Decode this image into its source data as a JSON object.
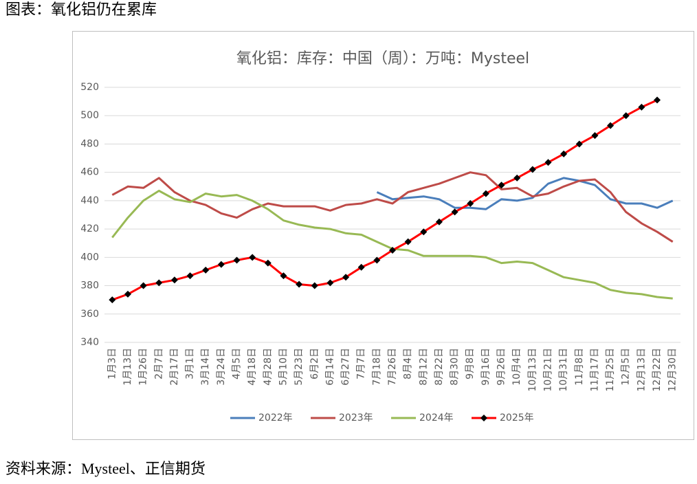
{
  "header": {
    "title": "图表：氧化铝仍在累库"
  },
  "chart_data": {
    "type": "line",
    "title": "氧化铝：库存：中国（周）：万吨：Mysteel",
    "categories": [
      "1月3日",
      "1月13日",
      "1月26日",
      "2月7日",
      "2月17日",
      "3月1日",
      "3月14日",
      "3月24日",
      "4月5日",
      "4月18日",
      "4月28日",
      "5月10日",
      "5月23日",
      "6月2日",
      "6月14日",
      "6月27日",
      "7月7日",
      "7月18日",
      "7月26日",
      "8月4日",
      "8月12日",
      "8月22日",
      "8月30日",
      "9月8日",
      "9月16日",
      "9月26日",
      "10月4日",
      "10月13日",
      "10月21日",
      "10月31日",
      "11月8日",
      "11月17日",
      "11月25日",
      "12月5日",
      "12月13日",
      "12月22日",
      "12月30日"
    ],
    "series": [
      {
        "name": "2022年",
        "color": "#4a7ebb",
        "values": [
          null,
          null,
          null,
          null,
          null,
          null,
          null,
          null,
          null,
          null,
          null,
          null,
          null,
          null,
          null,
          null,
          null,
          446,
          441,
          442,
          443,
          441,
          435,
          435,
          434,
          441,
          440,
          442,
          452,
          456,
          454,
          451,
          441,
          438,
          438,
          435,
          440
        ]
      },
      {
        "name": "2023年",
        "color": "#be4b48",
        "values": [
          444,
          450,
          449,
          456,
          446,
          440,
          437,
          431,
          428,
          434,
          438,
          436,
          436,
          436,
          433,
          437,
          438,
          441,
          438,
          446,
          449,
          452,
          456,
          460,
          458,
          448,
          449,
          443,
          445,
          450,
          454,
          455,
          446,
          432,
          424,
          418,
          411
        ]
      },
      {
        "name": "2024年",
        "color": "#98b954",
        "values": [
          414,
          428,
          440,
          447,
          441,
          439,
          445,
          443,
          444,
          440,
          434,
          426,
          423,
          421,
          420,
          417,
          416,
          411,
          406,
          405,
          401,
          401,
          401,
          401,
          400,
          396,
          397,
          396,
          391,
          386,
          384,
          382,
          377,
          375,
          374,
          372,
          371
        ]
      },
      {
        "name": "2025年",
        "color": "#ff0000",
        "marker": "diamond",
        "marker_color": "#000000",
        "values": [
          370,
          374,
          380,
          382,
          384,
          387,
          391,
          395,
          398,
          400,
          396,
          387,
          381,
          380,
          382,
          386,
          393,
          398,
          405,
          411,
          418,
          425,
          432,
          438,
          445,
          451,
          456,
          462,
          467,
          473,
          480,
          486,
          493,
          500,
          506,
          511,
          null
        ]
      }
    ],
    "ylim": [
      340,
      520
    ],
    "yticks": [
      340,
      360,
      380,
      400,
      420,
      440,
      460,
      480,
      500,
      520
    ],
    "grid": true,
    "legend": "bottom"
  },
  "footer": {
    "source": "资料来源：Mysteel、正信期货"
  }
}
